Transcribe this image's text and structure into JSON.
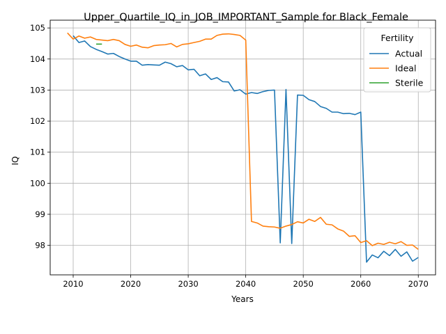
{
  "chart_data": {
    "type": "line",
    "title": "Upper_Quartile_IQ_in_JOB_IMPORTANT_Sample for Black_Female",
    "xlabel": "Years",
    "ylabel": "IQ",
    "xlim": [
      2006,
      2073
    ],
    "ylim": [
      97.05,
      105.25
    ],
    "xticks": [
      2010,
      2020,
      2030,
      2040,
      2050,
      2060,
      2070
    ],
    "yticks": [
      98,
      99,
      100,
      101,
      102,
      103,
      104,
      105
    ],
    "grid": true,
    "legend": {
      "title": "Fertility",
      "placement": "top-right"
    },
    "series": [
      {
        "name": "Actual",
        "color": "#1f77b4",
        "x": [
          2010,
          2011,
          2012,
          2013,
          2014,
          2015,
          2016,
          2017,
          2018,
          2019,
          2020,
          2021,
          2022,
          2023,
          2024,
          2025,
          2026,
          2027,
          2028,
          2029,
          2030,
          2031,
          2032,
          2033,
          2034,
          2035,
          2036,
          2037,
          2038,
          2039,
          2040,
          2041,
          2042,
          2043,
          2044,
          2045,
          2046,
          2047,
          2048,
          2049,
          2050,
          2051,
          2052,
          2053,
          2054,
          2055,
          2056,
          2057,
          2058,
          2059,
          2060,
          2061,
          2062,
          2063,
          2064,
          2065,
          2066,
          2067,
          2068,
          2069,
          2070
        ],
        "y": [
          104.75,
          104.53,
          104.58,
          104.4,
          104.31,
          104.24,
          104.16,
          104.18,
          104.08,
          104.0,
          103.93,
          103.93,
          103.8,
          103.82,
          103.81,
          103.8,
          103.9,
          103.85,
          103.75,
          103.79,
          103.65,
          103.67,
          103.46,
          103.52,
          103.34,
          103.4,
          103.27,
          103.26,
          102.97,
          103.01,
          102.87,
          102.92,
          102.89,
          102.95,
          102.99,
          103.0,
          98.08,
          103.02,
          98.06,
          102.84,
          102.83,
          102.69,
          102.63,
          102.47,
          102.41,
          102.29,
          102.29,
          102.24,
          102.25,
          102.21,
          102.29,
          97.46,
          97.69,
          97.6,
          97.81,
          97.67,
          97.87,
          97.65,
          97.79,
          97.49,
          97.61
        ]
      },
      {
        "name": "Ideal",
        "color": "#ff7f0e",
        "x": [
          2009,
          2010,
          2011,
          2012,
          2013,
          2014,
          2015,
          2016,
          2017,
          2018,
          2019,
          2020,
          2021,
          2022,
          2023,
          2024,
          2025,
          2026,
          2027,
          2028,
          2029,
          2030,
          2031,
          2032,
          2033,
          2034,
          2035,
          2036,
          2037,
          2038,
          2039,
          2040,
          2041,
          2042,
          2043,
          2044,
          2045,
          2046,
          2047,
          2048,
          2049,
          2050,
          2051,
          2052,
          2053,
          2054,
          2055,
          2056,
          2057,
          2058,
          2059,
          2060,
          2061,
          2062,
          2063,
          2064,
          2065,
          2066,
          2067,
          2068,
          2069,
          2070
        ],
        "y": [
          104.84,
          104.64,
          104.74,
          104.67,
          104.71,
          104.63,
          104.61,
          104.59,
          104.63,
          104.59,
          104.47,
          104.41,
          104.45,
          104.38,
          104.36,
          104.43,
          104.45,
          104.46,
          104.5,
          104.39,
          104.47,
          104.49,
          104.53,
          104.57,
          104.64,
          104.64,
          104.76,
          104.8,
          104.81,
          104.79,
          104.76,
          104.61,
          98.77,
          98.72,
          98.62,
          98.6,
          98.59,
          98.55,
          98.62,
          98.67,
          98.76,
          98.72,
          98.84,
          98.77,
          98.9,
          98.68,
          98.66,
          98.53,
          98.46,
          98.29,
          98.31,
          98.09,
          98.15,
          97.99,
          98.07,
          98.03,
          98.1,
          98.05,
          98.12,
          98.0,
          98.01,
          97.87
        ]
      },
      {
        "name": "Sterile",
        "color": "#2ca02c",
        "x": [
          2014,
          2015
        ],
        "y": [
          104.48,
          104.48
        ]
      }
    ]
  }
}
